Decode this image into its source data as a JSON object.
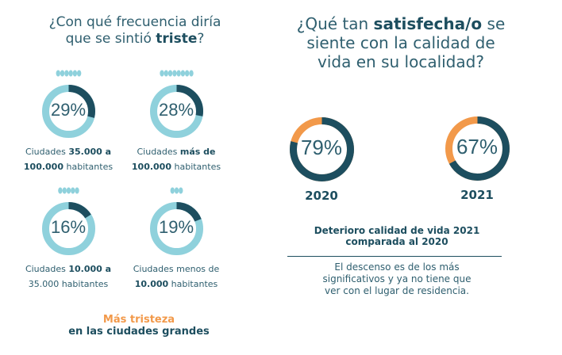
{
  "left": {
    "title_pre": "¿Con qué frecuencia diría",
    "title_line2": "que se sintió ",
    "title_bold": "triste",
    "title_end": "?",
    "footer_orange": "Más tristeza",
    "footer_dark": "en las ciudades grandes"
  },
  "right": {
    "title_pre": "¿Qué tan ",
    "title_bold": "satisfecha/o",
    "title_post": " se",
    "title_line2": "siente con la calidad  de",
    "title_line3": "vida en su localidad?",
    "subtitle_line1": "Deterioro calidad de vida  2021",
    "subtitle_line2": "comparada al 2020",
    "note_line1": "El descenso es de los más",
    "note_line2": "significativos y ya no tiene que",
    "note_line3": "ver con el lugar de residencia."
  },
  "colors": {
    "dark": "#1d4e5f",
    "light": "#8fd1dc",
    "orange": "#f2994a"
  },
  "chart_data": [
    {
      "type": "pie",
      "title": "¿Con qué frecuencia diría que se sintió triste?",
      "categories": [
        "Ciudades 35.000 a 100.000 habitantes",
        "Ciudades más de 100.000 habitantes",
        "Ciudades 10.000 a 35.000 habitantes",
        "Ciudades menos de 10.000 habitantes"
      ],
      "values": [
        29,
        28,
        16,
        19
      ],
      "labels": [
        "29%",
        "28%",
        "16%",
        "19%"
      ],
      "people_icons": [
        6,
        8,
        5,
        3
      ],
      "captions": [
        {
          "a": "Ciudades ",
          "b": "35.000 a",
          "c": "100.000",
          "d": " habitantes"
        },
        {
          "a": "Ciudades ",
          "b": "más de",
          "c": "100.000",
          "d": " habitantes"
        },
        {
          "a": "Ciudades ",
          "b": "10.000 a",
          "c": "",
          "d": "35.000 habitantes"
        },
        {
          "a": "Ciudades  menos de",
          "b": "",
          "c": "10.000",
          "d": " habitantes"
        }
      ]
    },
    {
      "type": "pie",
      "title": "¿Qué tan satisfecha/o se siente con la calidad de vida en su localidad?",
      "categories": [
        "2020",
        "2021"
      ],
      "values": [
        79,
        67
      ],
      "labels": [
        "79%",
        "67%"
      ]
    }
  ]
}
